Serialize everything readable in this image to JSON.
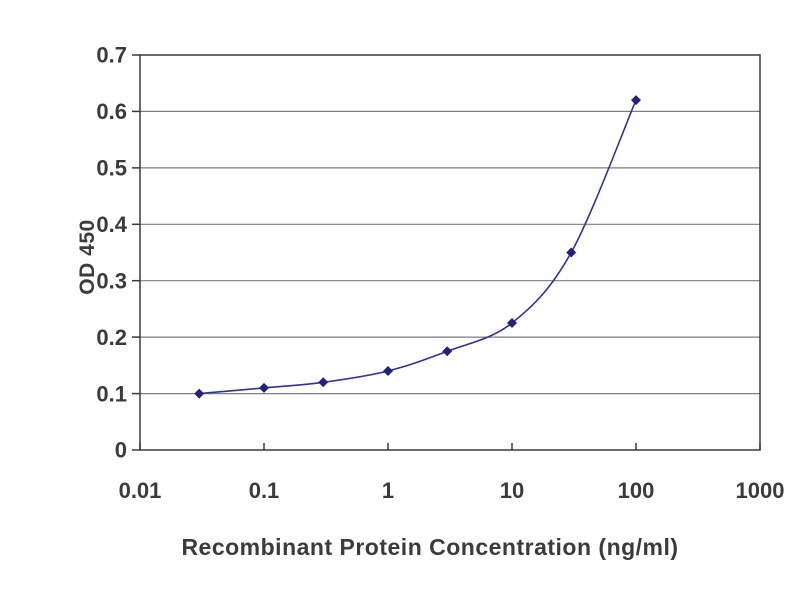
{
  "chart_data": {
    "type": "line",
    "title": "",
    "xlabel": "Recombinant Protein Concentration (ng/ml)",
    "ylabel": "OD 450",
    "x_scale": "log",
    "xlim": [
      0.01,
      1000
    ],
    "ylim": [
      0,
      0.7
    ],
    "x_ticks": [
      "0.01",
      "0.1",
      "1",
      "10",
      "100",
      "1000"
    ],
    "y_ticks": [
      "0",
      "0.1",
      "0.2",
      "0.3",
      "0.4",
      "0.5",
      "0.6",
      "0.7"
    ],
    "grid": "horizontal",
    "legend": "none",
    "series": [
      {
        "name": "OD 450",
        "marker": "diamond",
        "x": [
          0.03,
          0.1,
          0.3,
          1,
          3,
          10,
          30,
          100
        ],
        "y": [
          0.1,
          0.11,
          0.12,
          0.14,
          0.175,
          0.225,
          0.35,
          0.62
        ]
      }
    ],
    "colors": {
      "line": "#31319b",
      "marker": "#22227c",
      "grid": "#7d7d7d",
      "axis": "#3a3a3a",
      "text": "#3b3b3b",
      "background": "#ffffff"
    }
  }
}
